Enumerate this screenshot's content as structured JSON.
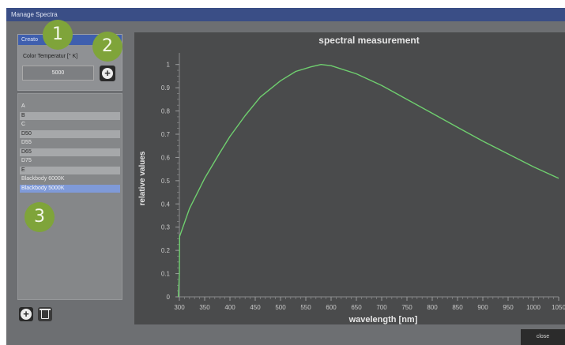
{
  "window": {
    "title": "Manage Spectra"
  },
  "create_panel": {
    "header": "Creato",
    "temp_label": "Color Temperatur [° K]",
    "temp_value": "5000",
    "add_symbol": "+"
  },
  "spectra_list": [
    {
      "label": "A",
      "style": "plain"
    },
    {
      "label": "B",
      "style": "alt"
    },
    {
      "label": "C",
      "style": "plain"
    },
    {
      "label": "D50",
      "style": "alt"
    },
    {
      "label": "D55",
      "style": "plain"
    },
    {
      "label": "D65",
      "style": "alt"
    },
    {
      "label": "D75",
      "style": "plain"
    },
    {
      "label": "E",
      "style": "alt"
    },
    {
      "label": "Blackbody 6000K",
      "style": "plain"
    },
    {
      "label": "Blackbody 5000K",
      "style": "selected"
    }
  ],
  "bottom_buttons": {
    "add_symbol": "+"
  },
  "close_label": "close",
  "badges": [
    "1",
    "2",
    "3"
  ],
  "chart_data": {
    "type": "line",
    "title": "spectral measurement",
    "xlabel": "wavelength [nm]",
    "ylabel": "relative values",
    "xlim": [
      300,
      1050
    ],
    "ylim": [
      0,
      1.05
    ],
    "xticks": [
      300,
      350,
      400,
      450,
      500,
      550,
      600,
      650,
      700,
      750,
      800,
      850,
      900,
      950,
      1000,
      1050
    ],
    "yticks": [
      0,
      0.1,
      0.2,
      0.3,
      0.4,
      0.5,
      0.6,
      0.7,
      0.8,
      0.9,
      1
    ],
    "ytick_labels": [
      "0",
      "0.1",
      "0.2",
      "0.3",
      "0.4",
      "0.5",
      "0.6",
      "0.7",
      "0.8",
      "0.9",
      "1"
    ],
    "grid": false,
    "series": [
      {
        "color": "#6fcf6f",
        "x": [
          298,
          300,
          300.5,
          320,
          350,
          380,
          400,
          430,
          460,
          500,
          530,
          560,
          580,
          600,
          650,
          700,
          750,
          800,
          850,
          900,
          950,
          1000,
          1050
        ],
        "y": [
          0.0,
          0.1,
          0.26,
          0.38,
          0.51,
          0.62,
          0.69,
          0.78,
          0.86,
          0.93,
          0.97,
          0.99,
          1.0,
          0.995,
          0.96,
          0.91,
          0.85,
          0.79,
          0.73,
          0.67,
          0.615,
          0.56,
          0.51
        ]
      }
    ]
  }
}
